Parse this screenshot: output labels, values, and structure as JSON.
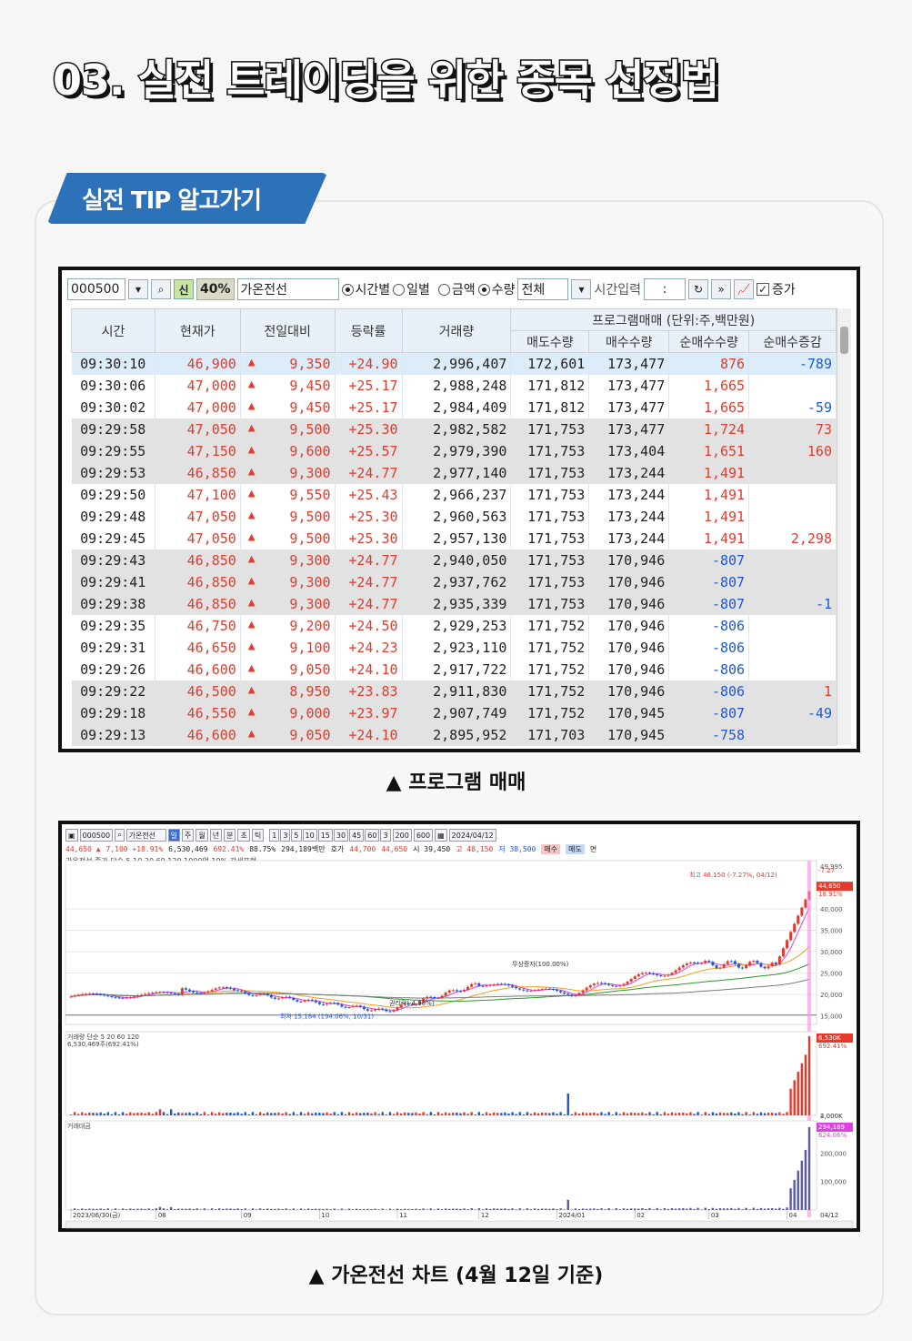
{
  "page": {
    "title": "03. 실전 트레이딩을 위한 종목 선정법",
    "tip_label": "실전 TIP 알고가기"
  },
  "program_window": {
    "code": "000500",
    "pct_badge": "40%",
    "stock_name": "가온전선",
    "radio_time": "시간별",
    "radio_day": "일별",
    "radio_amount": "금액",
    "radio_qty": "수량",
    "filter": "전체",
    "time_input_label": "시간입력",
    "time_input_value": ":",
    "checkbox_label": "증가",
    "headers": {
      "time": "시간",
      "price": "현재가",
      "change": "전일대비",
      "rate": "등락률",
      "volume": "거래량",
      "program_group": "프로그램매매 (단위:주,백만원)",
      "sell": "매도수량",
      "buy": "매수수량",
      "net": "순매수수량",
      "net_delta": "순매수증감"
    },
    "rows": [
      [
        "09:30:10",
        "46,900",
        "9,350",
        "+24.90",
        "2,996,407",
        "172,601",
        "173,477",
        "876",
        "-789"
      ],
      [
        "09:30:06",
        "47,000",
        "9,450",
        "+25.17",
        "2,988,248",
        "171,812",
        "173,477",
        "1,665",
        ""
      ],
      [
        "09:30:02",
        "47,000",
        "9,450",
        "+25.17",
        "2,984,409",
        "171,812",
        "173,477",
        "1,665",
        "-59"
      ],
      [
        "09:29:58",
        "47,050",
        "9,500",
        "+25.30",
        "2,982,582",
        "171,753",
        "173,477",
        "1,724",
        "73"
      ],
      [
        "09:29:55",
        "47,150",
        "9,600",
        "+25.57",
        "2,979,390",
        "171,753",
        "173,404",
        "1,651",
        "160"
      ],
      [
        "09:29:53",
        "46,850",
        "9,300",
        "+24.77",
        "2,977,140",
        "171,753",
        "173,244",
        "1,491",
        ""
      ],
      [
        "09:29:50",
        "47,100",
        "9,550",
        "+25.43",
        "2,966,237",
        "171,753",
        "173,244",
        "1,491",
        ""
      ],
      [
        "09:29:48",
        "47,050",
        "9,500",
        "+25.30",
        "2,960,563",
        "171,753",
        "173,244",
        "1,491",
        ""
      ],
      [
        "09:29:45",
        "47,050",
        "9,500",
        "+25.30",
        "2,957,130",
        "171,753",
        "173,244",
        "1,491",
        "2,298"
      ],
      [
        "09:29:43",
        "46,850",
        "9,300",
        "+24.77",
        "2,940,050",
        "171,753",
        "170,946",
        "-807",
        ""
      ],
      [
        "09:29:41",
        "46,850",
        "9,300",
        "+24.77",
        "2,937,762",
        "171,753",
        "170,946",
        "-807",
        ""
      ],
      [
        "09:29:38",
        "46,850",
        "9,300",
        "+24.77",
        "2,935,339",
        "171,753",
        "170,946",
        "-807",
        "-1"
      ],
      [
        "09:29:35",
        "46,750",
        "9,200",
        "+24.50",
        "2,929,253",
        "171,752",
        "170,946",
        "-806",
        ""
      ],
      [
        "09:29:31",
        "46,650",
        "9,100",
        "+24.23",
        "2,923,110",
        "171,752",
        "170,946",
        "-806",
        ""
      ],
      [
        "09:29:26",
        "46,600",
        "9,050",
        "+24.10",
        "2,917,722",
        "171,752",
        "170,946",
        "-806",
        ""
      ],
      [
        "09:29:22",
        "46,500",
        "8,950",
        "+23.83",
        "2,911,830",
        "171,752",
        "170,946",
        "-806",
        "1"
      ],
      [
        "09:29:18",
        "46,550",
        "9,000",
        "+23.97",
        "2,907,749",
        "171,752",
        "170,945",
        "-807",
        "-49"
      ],
      [
        "09:29:13",
        "46,600",
        "9,050",
        "+24.10",
        "2,895,952",
        "171,703",
        "170,945",
        "-758",
        ""
      ]
    ],
    "row_shading": [
      "sel",
      "w",
      "w",
      "g",
      "g",
      "g",
      "w",
      "w",
      "w",
      "g",
      "g",
      "g",
      "w",
      "w",
      "w",
      "g",
      "g",
      "g"
    ]
  },
  "caption1": "▲ 프로그램 매매",
  "chart_window": {
    "toolbar": {
      "code": "000500",
      "name": "가온전선",
      "tabs": [
        "주",
        "월",
        "년",
        "분",
        "초",
        "틱"
      ],
      "intervals": [
        "1",
        "3",
        "5",
        "10",
        "15",
        "30",
        "45",
        "60",
        "3"
      ],
      "count": "200",
      "total": "600",
      "date": "2024/04/12"
    },
    "info": {
      "price": "44,650 ▲",
      "change": "7,100 +18.91%",
      "volume": "6,530,469",
      "vol_rate": "692.41%",
      "ratio": "88.75%",
      "amount": "294,189백만",
      "ask_label": "호가",
      "ask": "44,700",
      "bid": "44,650",
      "open": "시 39,450",
      "high": "고 48,150",
      "low": "저 38,500",
      "sell_btn": "매수",
      "buy_btn": "매도",
      "extra": "면"
    },
    "legend": "가온전선 종가 단순 5 10 20 60 120 1000억 10% 강세표현",
    "annotations": {
      "high": "최고 48,150 (-7.27%, 04/12)",
      "low": "최저 15,184 (194.06%, 10/31)",
      "rights1": "권리락(-4.38%)",
      "rights2": "무상증자(100.00%)"
    },
    "price_axis": [
      "49,995",
      "40,000",
      "35,000",
      "30,000",
      "25,000",
      "20,000",
      "15,000"
    ],
    "price_tag": "44,650",
    "price_tag_rate": "18.91%",
    "top_tag_rate": "-7.27",
    "volume_label": "거래량 단순 5 20 60 120",
    "volume_sub": "6,530,469주(692.41%)",
    "volume_axis": [
      "4,000K",
      "2,000K"
    ],
    "volume_tag": "6,530K",
    "volume_tag_rate": "692.41%",
    "amount_label": "거래대금",
    "amount_axis": [
      "200,000",
      "100,000"
    ],
    "amount_tag": "294,189",
    "amount_tag_rate": "624.06%",
    "x_labels": [
      "2023/06/30(금)",
      "08",
      "09",
      "10",
      "11",
      "12",
      "2024/01",
      "02",
      "03",
      "04"
    ],
    "x_end": "04/12"
  },
  "caption2": "▲ 가온전선 차트 (4월 12일 기준)",
  "colors": {
    "up": "#e23b2e",
    "down": "#1f58d6",
    "tab": "#2d71b8"
  }
}
